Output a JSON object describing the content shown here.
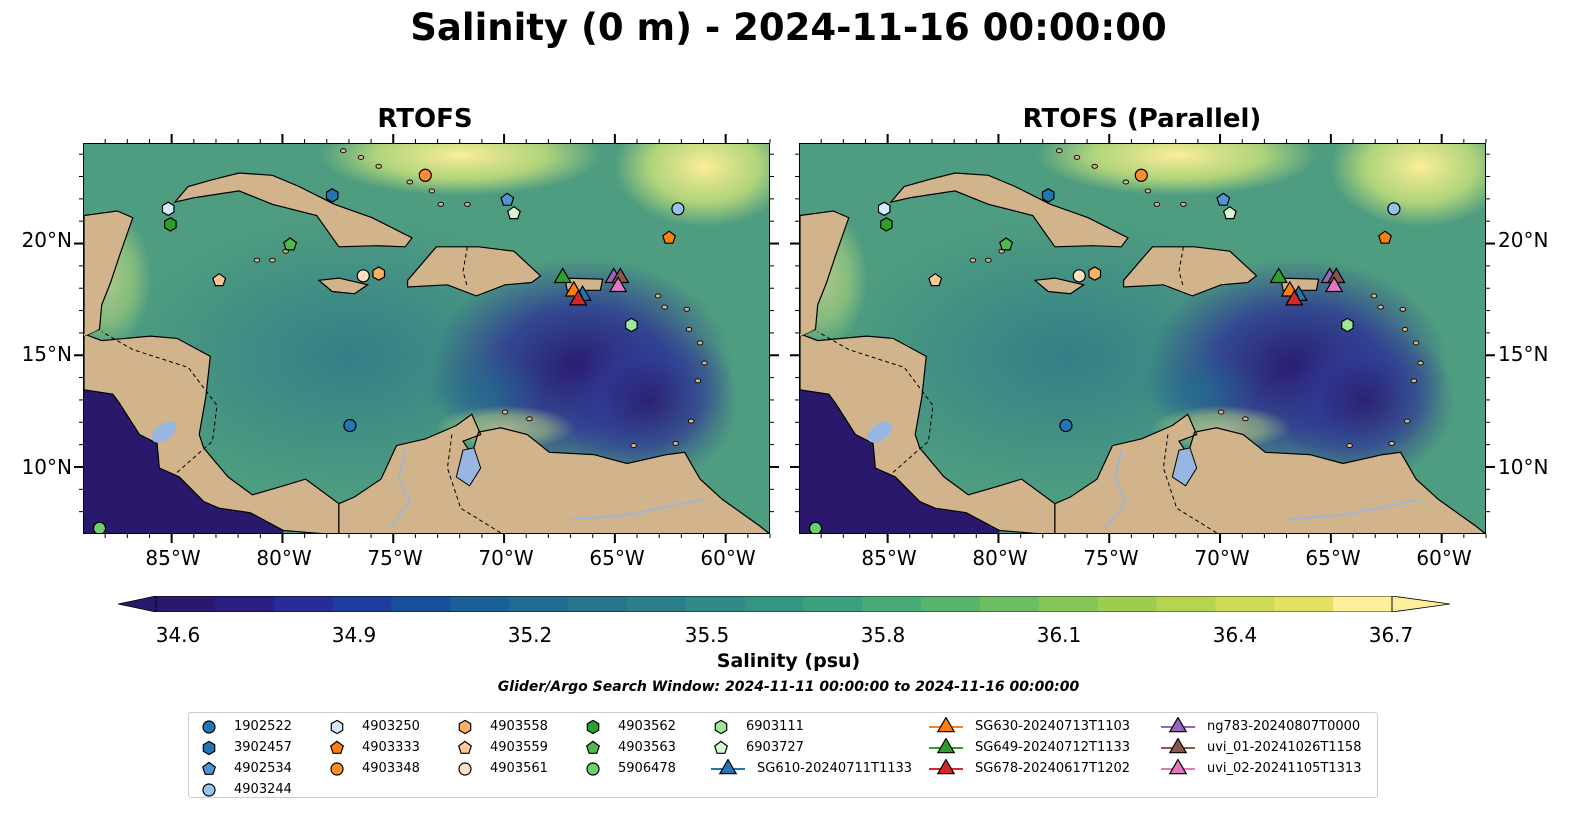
{
  "title": "Salinity (0 m) - 2024-11-16 00:00:00",
  "panels": [
    {
      "title": "RTOFS"
    },
    {
      "title": "RTOFS (Parallel)"
    }
  ],
  "map_extent": {
    "lon": [
      -89,
      -58
    ],
    "lat": [
      7,
      24.5
    ]
  },
  "lon_ticks": [
    "85°W",
    "80°W",
    "75°W",
    "70°W",
    "65°W",
    "60°W"
  ],
  "lon_tick_values": [
    -85,
    -80,
    -75,
    -70,
    -65,
    -60
  ],
  "lat_ticks": [
    "20°N",
    "15°N",
    "10°N"
  ],
  "lat_tick_values": [
    20,
    15,
    10
  ],
  "colorbar": {
    "label": "Salinity (psu)",
    "min": 34.6,
    "max": 36.7,
    "ticks": [
      "34.6",
      "34.9",
      "35.2",
      "35.5",
      "35.8",
      "36.1",
      "36.4",
      "36.7"
    ],
    "colormap": "haline",
    "extend": "both"
  },
  "search_window": "Glider/Argo Search Window: 2024-11-11 00:00:00 to 2024-11-16 00:00:00",
  "colors": {
    "land": "#d2b48c",
    "lakes": "#97b6e1",
    "low_salinity": "#2a186c",
    "high_salinity": "#fdee99"
  },
  "legend": [
    {
      "label": "1902522",
      "marker": "circle",
      "color": "#1f77b4"
    },
    {
      "label": "3902457",
      "marker": "hexagon",
      "color": "#1f77b4"
    },
    {
      "label": "4902534",
      "marker": "pentagon",
      "color": "#4e95d1"
    },
    {
      "label": "4903244",
      "marker": "circle",
      "color": "#94c4ed"
    },
    {
      "label": "4903250",
      "marker": "hexagon",
      "color": "#d3e9ff"
    },
    {
      "label": "4903333",
      "marker": "pentagon",
      "color": "#ff7f0e"
    },
    {
      "label": "4903348",
      "marker": "circle",
      "color": "#ff8c2a"
    },
    {
      "label": "4903558",
      "marker": "hexagon",
      "color": "#ffb066"
    },
    {
      "label": "4903559",
      "marker": "pentagon",
      "color": "#ffc896"
    },
    {
      "label": "4903561",
      "marker": "circle",
      "color": "#ffe0c0"
    },
    {
      "label": "4903562",
      "marker": "hexagon",
      "color": "#2ca02c"
    },
    {
      "label": "4903563",
      "marker": "pentagon",
      "color": "#50b848"
    },
    {
      "label": "5906478",
      "marker": "circle",
      "color": "#6fcf6a"
    },
    {
      "label": "6903111",
      "marker": "hexagon",
      "color": "#9be89a"
    },
    {
      "label": "6903727",
      "marker": "pentagon",
      "color": "#d5f7d0"
    },
    {
      "label": "SG610-20240711T1133",
      "marker": "triangle",
      "color": "#1f77b4",
      "line": true
    },
    {
      "label": "SG630-20240713T1103",
      "marker": "triangle",
      "color": "#ff7f0e",
      "line": true
    },
    {
      "label": "SG649-20240712T1133",
      "marker": "triangle",
      "color": "#2ca02c",
      "line": true
    },
    {
      "label": "SG678-20240617T1202",
      "marker": "triangle",
      "color": "#d62728",
      "line": true
    },
    {
      "label": "ng783-20240807T0000",
      "marker": "triangle",
      "color": "#9467bd",
      "line": true
    },
    {
      "label": "uvi_01-20241026T1158",
      "marker": "triangle",
      "color": "#8c564b",
      "line": true
    },
    {
      "label": "uvi_02-20241105T1313",
      "marker": "triangle",
      "color": "#e377c2",
      "line": true
    }
  ],
  "floats": [
    {
      "id": "1902522",
      "lon": -77,
      "lat": 11.9
    },
    {
      "id": "3902457",
      "lon": -77.8,
      "lat": 22.2
    },
    {
      "id": "4902534",
      "lon": -69.9,
      "lat": 22
    },
    {
      "id": "4903244",
      "lon": -62.2,
      "lat": 21.6
    },
    {
      "id": "4903250",
      "lon": -85.2,
      "lat": 21.6
    },
    {
      "id": "4903333",
      "lon": -62.6,
      "lat": 20.3
    },
    {
      "id": "4903348",
      "lon": -73.6,
      "lat": 23.1
    },
    {
      "id": "4903558",
      "lon": -75.7,
      "lat": 18.7
    },
    {
      "id": "4903559",
      "lon": -82.9,
      "lat": 18.4
    },
    {
      "id": "4903561",
      "lon": -76.4,
      "lat": 18.6
    },
    {
      "id": "4903562",
      "lon": -85.1,
      "lat": 20.9
    },
    {
      "id": "4903563",
      "lon": -79.7,
      "lat": 20
    },
    {
      "id": "5906478",
      "lon": -88.3,
      "lat": 7.3
    },
    {
      "id": "6903111",
      "lon": -64.3,
      "lat": 16.4
    },
    {
      "id": "6903727",
      "lon": -69.6,
      "lat": 21.4
    }
  ],
  "gliders": [
    {
      "id": "SG610-20240711T1133",
      "lon": -66.5,
      "lat": 17.8
    },
    {
      "id": "SG630-20240713T1103",
      "lon": -66.9,
      "lat": 18
    },
    {
      "id": "SG649-20240712T1133",
      "lon": -67.4,
      "lat": 18.6
    },
    {
      "id": "SG678-20240617T1202",
      "lon": -66.7,
      "lat": 17.6
    },
    {
      "id": "ng783-20240807T0000",
      "lon": -65.1,
      "lat": 18.6
    },
    {
      "id": "uvi_01-20241026T1158",
      "lon": -64.8,
      "lat": 18.6
    },
    {
      "id": "uvi_02-20241105T1313",
      "lon": -64.9,
      "lat": 18.2
    }
  ]
}
